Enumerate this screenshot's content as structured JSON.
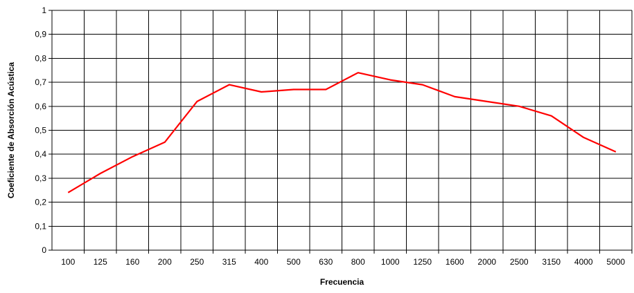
{
  "chart_data": {
    "type": "line",
    "title": "",
    "xlabel": "Frecuencia",
    "ylabel": "Coeficiente de Absorción Acústica",
    "categories": [
      "100",
      "125",
      "160",
      "200",
      "250",
      "315",
      "400",
      "500",
      "630",
      "800",
      "1000",
      "1250",
      "1600",
      "2000",
      "2500",
      "3150",
      "4000",
      "5000"
    ],
    "series": [
      {
        "values": [
          0.24,
          0.32,
          0.39,
          0.45,
          0.62,
          0.69,
          0.66,
          0.67,
          0.67,
          0.74,
          0.71,
          0.69,
          0.64,
          0.62,
          0.6,
          0.56,
          0.47,
          0.41
        ],
        "color": "#ff0000"
      }
    ],
    "ylim": [
      0,
      1
    ],
    "yticks": [
      "0",
      "0,1",
      "0,2",
      "0,3",
      "0,4",
      "0,5",
      "0,6",
      "0,7",
      "0,8",
      "0,9",
      "1"
    ],
    "grid": true,
    "legend": "none"
  }
}
